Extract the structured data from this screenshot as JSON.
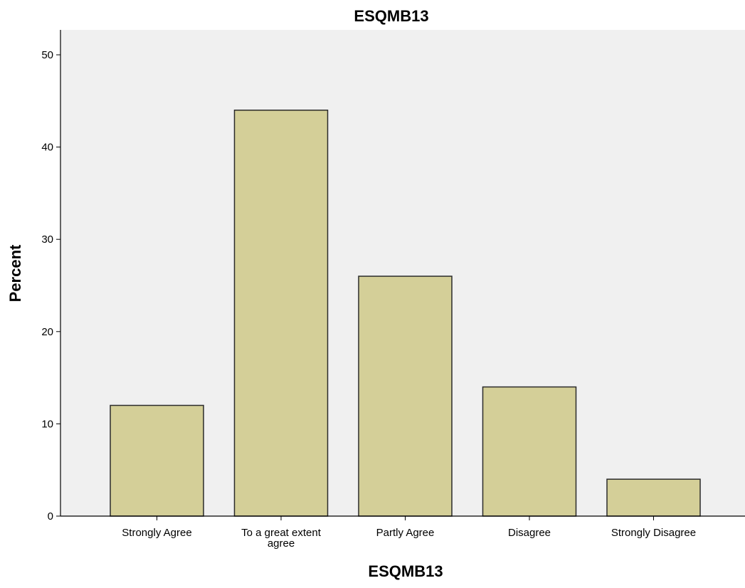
{
  "chart_data": {
    "type": "bar",
    "title": "ESQMB13",
    "xlabel": "ESQMB13",
    "ylabel": "Percent",
    "categories": [
      [
        "Strongly Agree"
      ],
      [
        "To a great extent",
        "agree"
      ],
      [
        "Partly Agree"
      ],
      [
        "Disagree"
      ],
      [
        "Strongly Disagree"
      ]
    ],
    "values": [
      12,
      44,
      26,
      14,
      4
    ],
    "ylim": [
      0,
      52.7
    ],
    "yticks": [
      0,
      10,
      20,
      30,
      40,
      50
    ],
    "grid": false,
    "legend": "none",
    "colors": {
      "bar_fill": "#d4cf98",
      "bar_stroke": "#2b2b2b",
      "plot_background": "#f0f0f0",
      "axis": "#000000"
    }
  }
}
